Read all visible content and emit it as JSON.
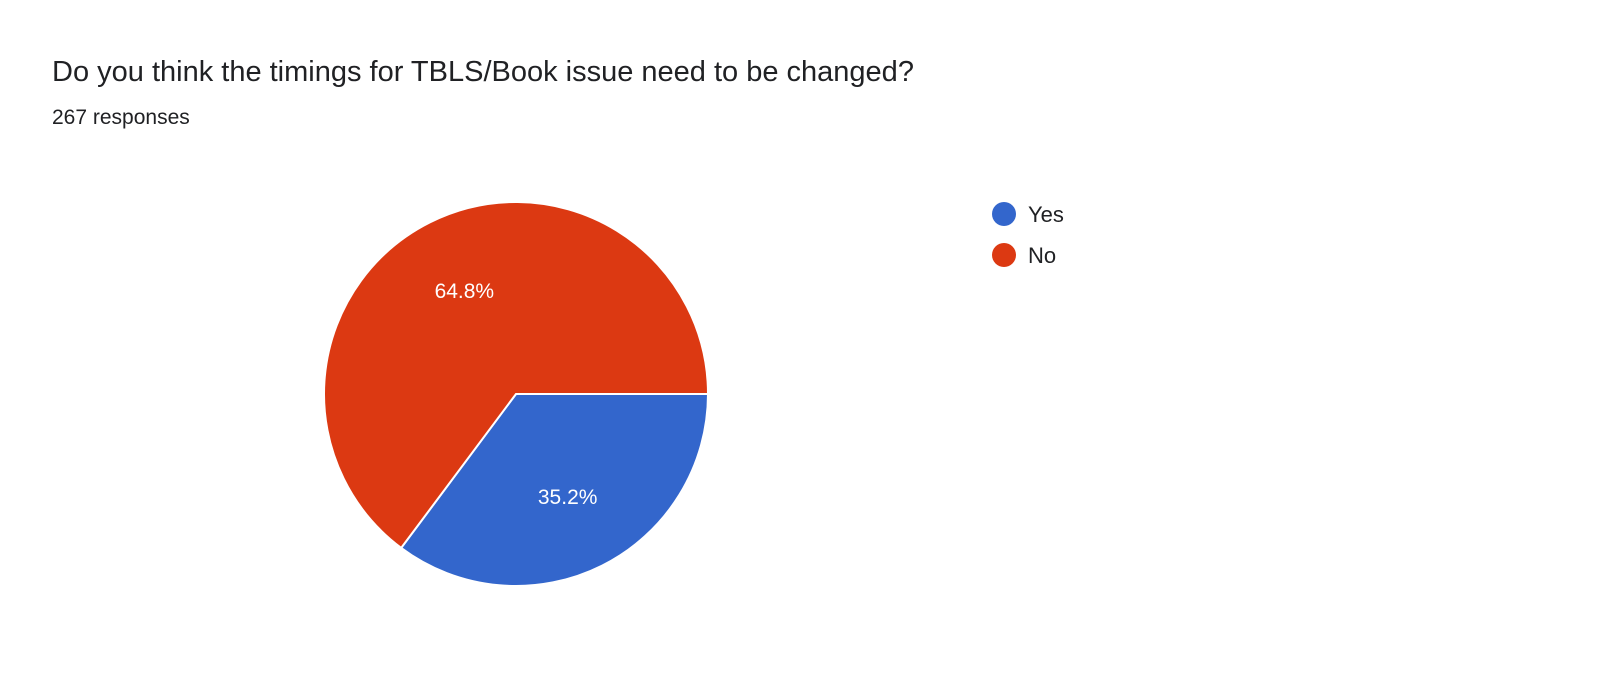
{
  "chart_data": {
    "type": "pie",
    "title": "Do you think the timings for TBLS/Book issue need to be changed?",
    "subtitle": "267 responses",
    "categories": [
      "Yes",
      "No"
    ],
    "values": [
      35.2,
      64.8
    ],
    "labels": [
      "35.2%",
      "64.8%"
    ],
    "colors": [
      "#3366cc",
      "#dc3912"
    ],
    "legend": "right"
  }
}
